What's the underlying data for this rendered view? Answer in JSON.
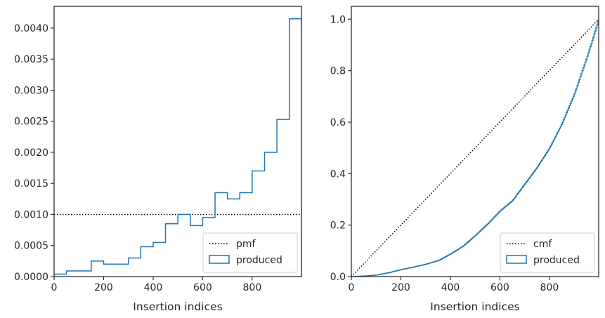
{
  "chart_data": [
    {
      "type": "step",
      "xlabel": "Insertion indices",
      "ylabel": "",
      "xlim": [
        0,
        999
      ],
      "ylim": [
        0,
        0.00435
      ],
      "xticks": [
        0,
        200,
        400,
        600,
        800
      ],
      "yticks": [
        0,
        0.0005,
        0.001,
        0.0015,
        0.002,
        0.0025,
        0.003,
        0.0035,
        0.004
      ],
      "ytick_labels": [
        "0.0000",
        "0.0005",
        "0.0010",
        "0.0015",
        "0.0020",
        "0.0025",
        "0.0030",
        "0.0035",
        "0.0040"
      ],
      "legend": {
        "position": "lower-right",
        "entries": [
          "pmf",
          "produced"
        ]
      },
      "series": [
        {
          "name": "pmf",
          "style": "dotted",
          "color": "#000000",
          "x": [
            0,
            999
          ],
          "y": [
            0.001,
            0.001
          ]
        },
        {
          "name": "produced",
          "style": "step-histogram",
          "color": "#1f77b4",
          "bin_edges": [
            0,
            50,
            100,
            150,
            200,
            250,
            300,
            350,
            400,
            450,
            500,
            550,
            600,
            650,
            700,
            750,
            800,
            850,
            900,
            950,
            999
          ],
          "values": [
            4e-05,
            9e-05,
            9e-05,
            0.00025,
            0.0002,
            0.0002,
            0.0003,
            0.00048,
            0.00055,
            0.00085,
            0.001,
            0.00082,
            0.00095,
            0.00135,
            0.00125,
            0.00135,
            0.0017,
            0.002,
            0.00253,
            0.00415
          ]
        }
      ]
    },
    {
      "type": "step",
      "xlabel": "Insertion indices",
      "ylabel": "",
      "xlim": [
        0,
        999
      ],
      "ylim": [
        0,
        1.05
      ],
      "xticks": [
        0,
        200,
        400,
        600,
        800
      ],
      "yticks": [
        0,
        0.2,
        0.4,
        0.6,
        0.8,
        1.0
      ],
      "ytick_labels": [
        "0.0",
        "0.2",
        "0.4",
        "0.6",
        "0.8",
        "1.0"
      ],
      "legend": {
        "position": "lower-right",
        "entries": [
          "cmf",
          "produced"
        ]
      },
      "series": [
        {
          "name": "cmf",
          "style": "dotted",
          "color": "#000000",
          "x": [
            0,
            999
          ],
          "y": [
            0,
            1
          ]
        },
        {
          "name": "produced",
          "style": "cumulative-step",
          "color": "#1f77b4",
          "x": [
            0,
            50,
            100,
            150,
            200,
            250,
            300,
            350,
            400,
            450,
            500,
            550,
            600,
            650,
            700,
            750,
            800,
            850,
            900,
            950,
            999
          ],
          "y": [
            0,
            0.002,
            0.006,
            0.015,
            0.027,
            0.037,
            0.048,
            0.062,
            0.088,
            0.118,
            0.16,
            0.205,
            0.255,
            0.295,
            0.36,
            0.425,
            0.5,
            0.595,
            0.71,
            0.85,
            1.0
          ]
        }
      ]
    }
  ]
}
